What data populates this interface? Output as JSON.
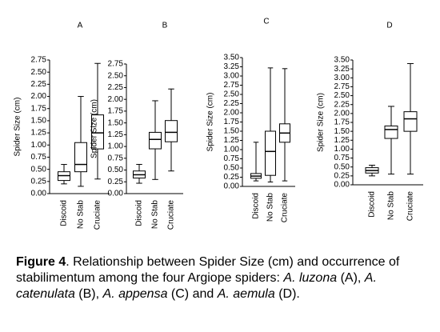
{
  "chart_data": [
    {
      "type": "box",
      "title": "A",
      "ylabel": "Spider Size (cm)",
      "categories": [
        "Discoid",
        "No Stab",
        "Cruciate"
      ],
      "boxes": [
        {
          "min": 0.2,
          "q1": 0.27,
          "median": 0.37,
          "q3": 0.45,
          "max": 0.6
        },
        {
          "min": 0.15,
          "q1": 0.45,
          "median": 0.6,
          "q3": 1.05,
          "max": 2.0
        },
        {
          "min": 0.3,
          "q1": 0.92,
          "median": 1.25,
          "q3": 1.62,
          "max": 2.68
        }
      ],
      "ylim": [
        0,
        2.75
      ],
      "yticks": [
        {
          "value": 0,
          "label": "0.00"
        },
        {
          "value": 0.25,
          "label": "0.25"
        },
        {
          "value": 0.5,
          "label": "0.50"
        },
        {
          "value": 0.75,
          "label": "0.75"
        },
        {
          "value": 1,
          "label": "1.00"
        },
        {
          "value": 1.25,
          "label": "1.25"
        },
        {
          "value": 1.5,
          "label": "1.50"
        },
        {
          "value": 1.75,
          "label": "1.75"
        },
        {
          "value": 2,
          "label": "2.00"
        },
        {
          "value": 2.25,
          "label": "2.25"
        },
        {
          "value": 2.5,
          "label": "2.50"
        },
        {
          "value": 2.75,
          "label": "2.75"
        }
      ]
    },
    {
      "type": "box",
      "title": "B",
      "ylabel": "Spider Size (cm)",
      "categories": [
        "Discoid",
        "No Stab",
        "Cruciate"
      ],
      "boxes": [
        {
          "min": 0.22,
          "q1": 0.33,
          "median": 0.4,
          "q3": 0.48,
          "max": 0.62
        },
        {
          "min": 0.3,
          "q1": 0.95,
          "median": 1.15,
          "q3": 1.3,
          "max": 1.97
        },
        {
          "min": 0.48,
          "q1": 1.1,
          "median": 1.3,
          "q3": 1.55,
          "max": 2.22
        }
      ],
      "ylim": [
        0,
        2.75
      ],
      "yticks": [
        {
          "value": 0,
          "label": "0.00"
        },
        {
          "value": 0.25,
          "label": "0.25"
        },
        {
          "value": 0.5,
          "label": "0.50"
        },
        {
          "value": 0.75,
          "label": "0.75"
        },
        {
          "value": 1,
          "label": "1.00"
        },
        {
          "value": 1.25,
          "label": "1.25"
        },
        {
          "value": 1.5,
          "label": "1.50"
        },
        {
          "value": 1.75,
          "label": "1.75"
        },
        {
          "value": 2,
          "label": "2.00"
        },
        {
          "value": 2.25,
          "label": "2.25"
        },
        {
          "value": 2.5,
          "label": "2.50"
        },
        {
          "value": 2.75,
          "label": "2.75"
        }
      ]
    },
    {
      "type": "box",
      "title": "C",
      "ylabel": "Spider Size (cm)",
      "categories": [
        "Discoid",
        "No Stab",
        "Cruciate"
      ],
      "boxes": [
        {
          "min": 0.15,
          "q1": 0.22,
          "median": 0.28,
          "q3": 0.35,
          "max": 1.2
        },
        {
          "min": 0.12,
          "q1": 0.3,
          "median": 0.95,
          "q3": 1.5,
          "max": 3.22
        },
        {
          "min": 0.15,
          "q1": 1.2,
          "median": 1.45,
          "q3": 1.7,
          "max": 3.2
        }
      ],
      "ylim": [
        0,
        3.5
      ],
      "yticks": [
        {
          "value": 0,
          "label": "0.00"
        },
        {
          "value": 0.25,
          "label": "0.25"
        },
        {
          "value": 0.5,
          "label": "0.50"
        },
        {
          "value": 0.75,
          "label": "0.75"
        },
        {
          "value": 1,
          "label": "1.00"
        },
        {
          "value": 1.25,
          "label": "1.25"
        },
        {
          "value": 1.5,
          "label": "1.50"
        },
        {
          "value": 1.75,
          "label": "1.75"
        },
        {
          "value": 2,
          "label": "2.00"
        },
        {
          "value": 2.25,
          "label": "2.25"
        },
        {
          "value": 2.5,
          "label": "2.50"
        },
        {
          "value": 2.75,
          "label": "2.75"
        },
        {
          "value": 3,
          "label": "3.00"
        },
        {
          "value": 3.25,
          "label": "3.25"
        },
        {
          "value": 3.5,
          "label": "3.50"
        }
      ]
    },
    {
      "type": "box",
      "title": "D",
      "ylabel": "Spider Size (cm)",
      "categories": [
        "Discoid",
        "No Stab",
        "Cruciate"
      ],
      "boxes": [
        {
          "min": 0.25,
          "q1": 0.33,
          "median": 0.4,
          "q3": 0.48,
          "max": 0.55
        },
        {
          "min": 0.3,
          "q1": 1.3,
          "median": 1.55,
          "q3": 1.65,
          "max": 2.2
        },
        {
          "min": 0.3,
          "q1": 1.5,
          "median": 1.85,
          "q3": 2.05,
          "max": 3.4
        }
      ],
      "ylim": [
        0,
        3.5
      ],
      "yticks": [
        {
          "value": 0,
          "label": "0.00"
        },
        {
          "value": 0.25,
          "label": "0.25"
        },
        {
          "value": 0.5,
          "label": "0.50"
        },
        {
          "value": 0.75,
          "label": "0.75"
        },
        {
          "value": 1,
          "label": "1.00"
        },
        {
          "value": 1.25,
          "label": "1.25"
        },
        {
          "value": 1.5,
          "label": "1.50"
        },
        {
          "value": 1.75,
          "label": "1.75"
        },
        {
          "value": 2,
          "label": "2.00"
        },
        {
          "value": 2.25,
          "label": "2.25"
        },
        {
          "value": 2.5,
          "label": "2.50"
        },
        {
          "value": 2.75,
          "label": "2.75"
        },
        {
          "value": 3,
          "label": "3.00"
        },
        {
          "value": 3.25,
          "label": "3.25"
        },
        {
          "value": 3.5,
          "label": "3.50"
        }
      ]
    }
  ],
  "caption": {
    "segments": [
      "Figure 4",
      ". Relationship between Spider Size (cm) and occurrence of stabilimentum among the four Argiope spiders: ",
      "A. luzona",
      " (A), ",
      "A. catenulata",
      " (B), ",
      "A. appensa",
      " (C) and ",
      "A. aemula",
      " (D)."
    ]
  }
}
